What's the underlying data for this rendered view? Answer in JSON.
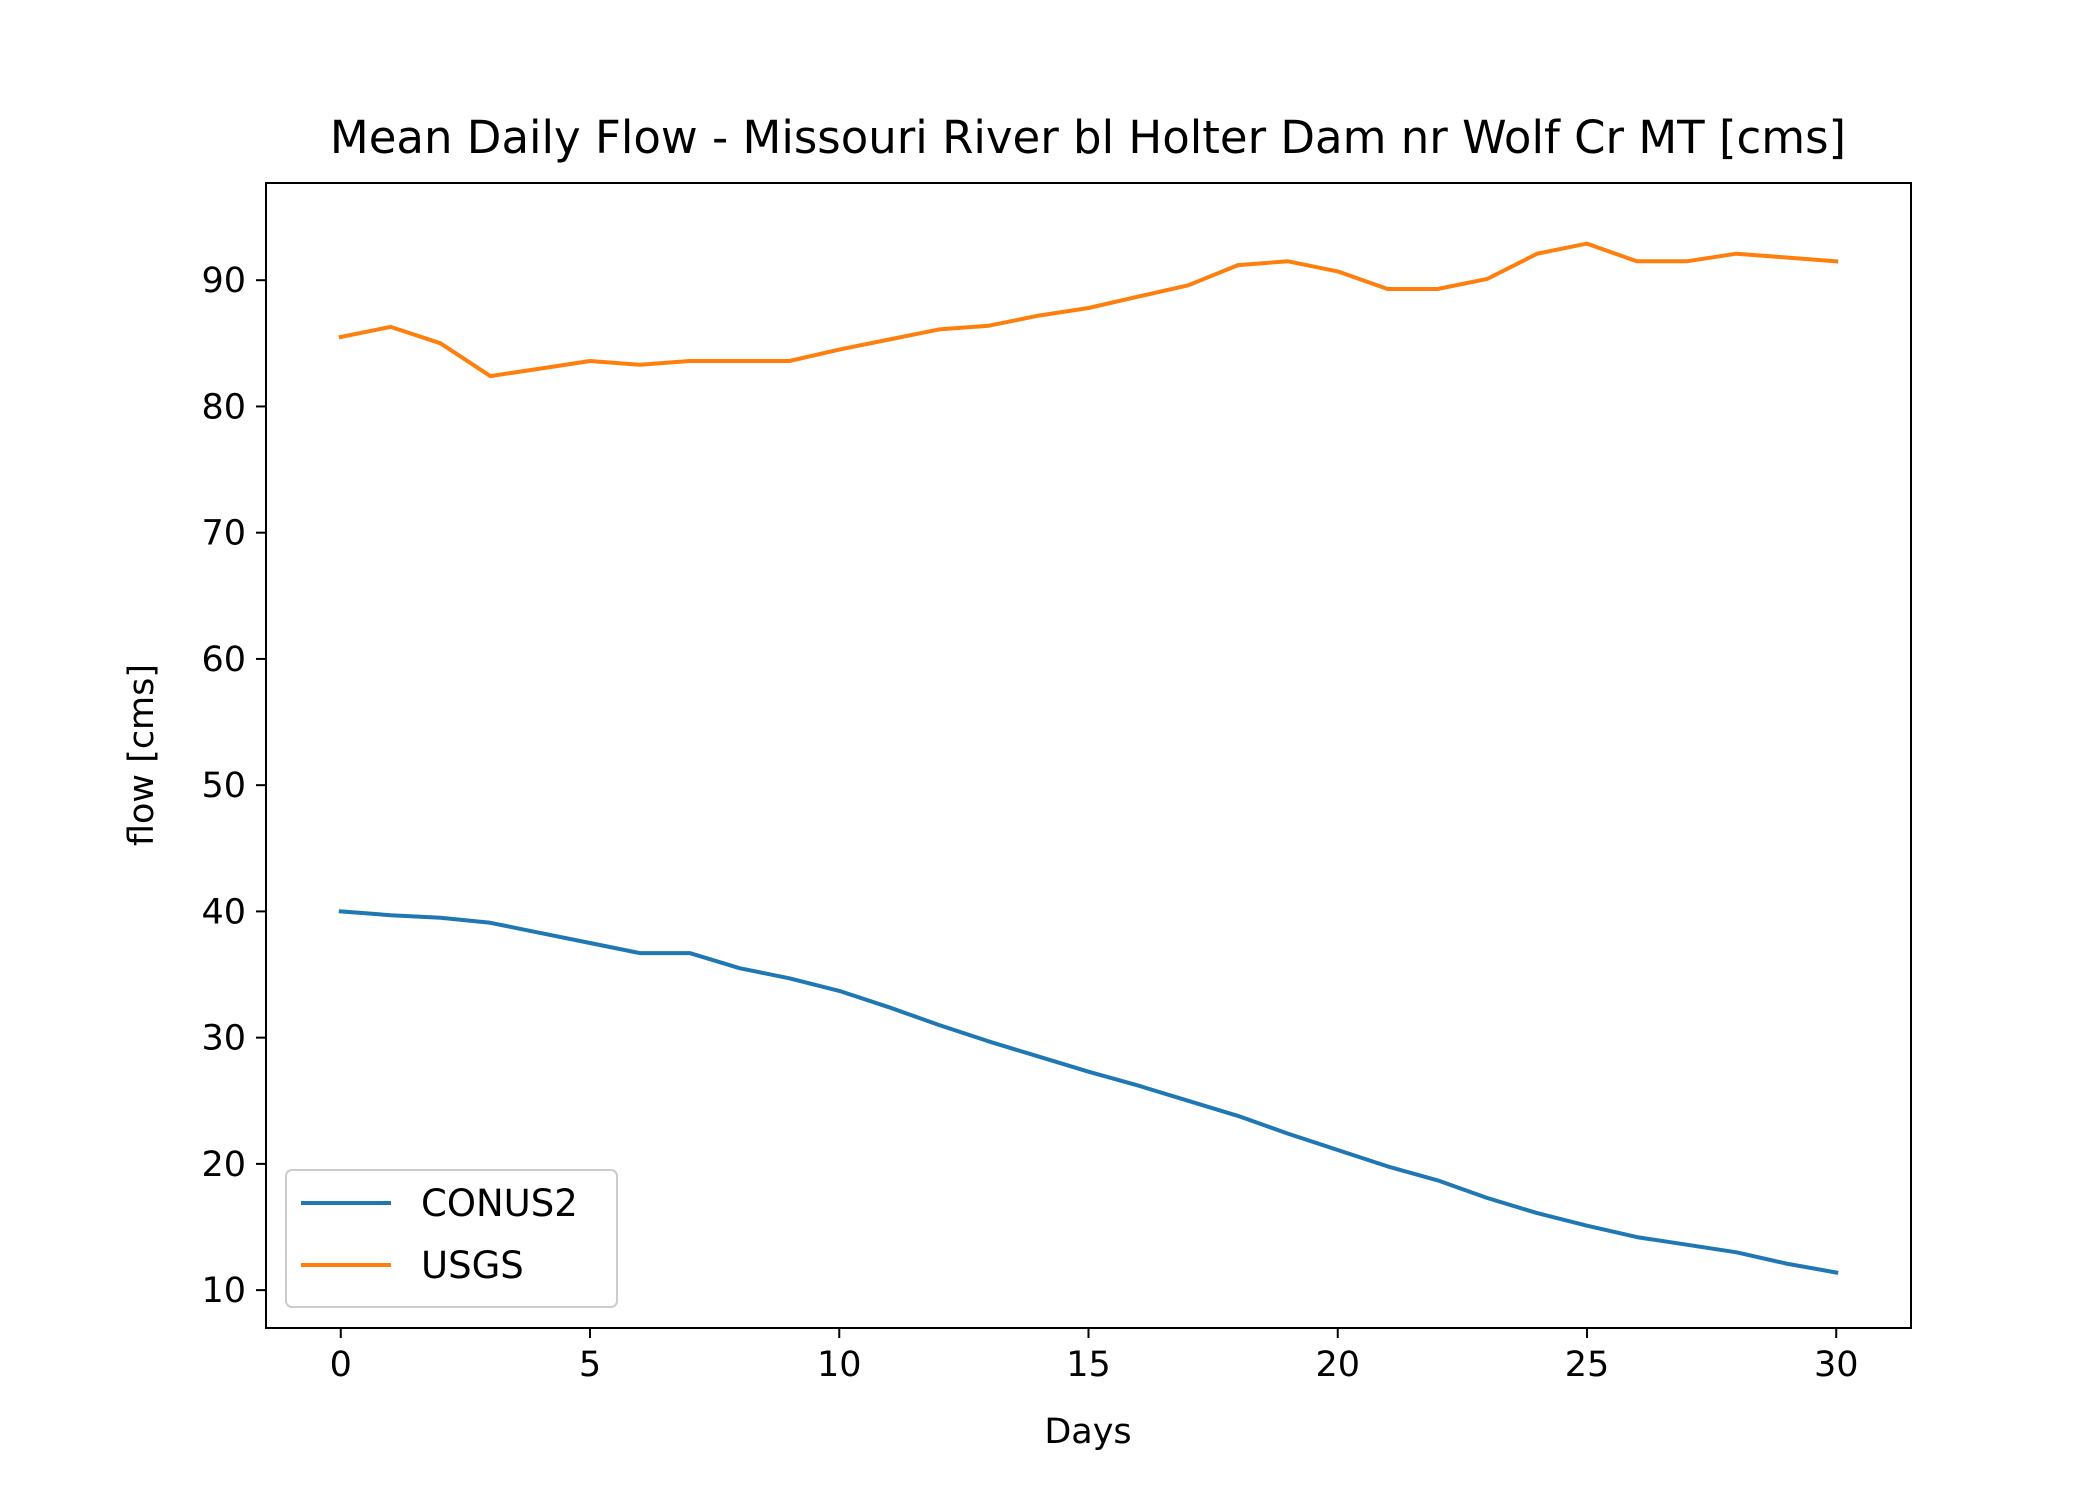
{
  "chart_data": {
    "type": "line",
    "title": "Mean Daily Flow - Missouri River bl Holter Dam nr Wolf Cr MT [cms]",
    "xlabel": "Days",
    "ylabel": "flow [cms]",
    "xlim": [
      -1.5,
      31.5
    ],
    "ylim": [
      7.0,
      97.7
    ],
    "xticks": [
      0,
      5,
      10,
      15,
      20,
      25,
      30
    ],
    "yticks": [
      10,
      20,
      30,
      40,
      50,
      60,
      70,
      80,
      90
    ],
    "grid": false,
    "legend_position": "lower-left",
    "x": [
      0,
      1,
      2,
      3,
      4,
      5,
      6,
      7,
      8,
      9,
      10,
      11,
      12,
      13,
      14,
      15,
      16,
      17,
      18,
      19,
      20,
      21,
      22,
      23,
      24,
      25,
      26,
      27,
      28,
      29,
      30
    ],
    "series": [
      {
        "name": "CONUS2",
        "color": "#1f77b4",
        "values": [
          40.0,
          39.7,
          39.5,
          39.1,
          38.3,
          37.5,
          36.7,
          36.7,
          35.5,
          34.7,
          33.7,
          32.4,
          31.0,
          29.7,
          28.5,
          27.3,
          26.2,
          25.0,
          23.8,
          22.4,
          21.1,
          19.8,
          18.7,
          17.3,
          16.1,
          15.1,
          14.2,
          13.6,
          13.0,
          12.1,
          11.4
        ]
      },
      {
        "name": "USGS",
        "color": "#ff7f0e",
        "values": [
          85.5,
          86.3,
          85.0,
          82.4,
          83.0,
          83.6,
          83.3,
          83.6,
          83.6,
          83.6,
          84.5,
          85.3,
          86.1,
          86.4,
          87.2,
          87.8,
          88.7,
          89.6,
          91.2,
          91.5,
          90.7,
          89.3,
          89.3,
          90.1,
          92.1,
          92.9,
          91.5,
          91.5,
          92.1,
          91.8,
          91.5
        ]
      }
    ]
  }
}
